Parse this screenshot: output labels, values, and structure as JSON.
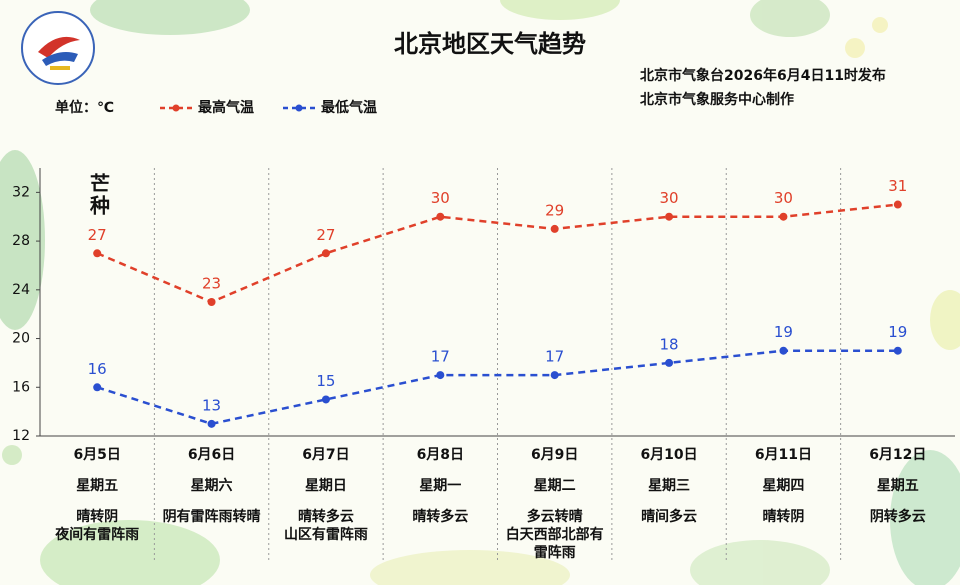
{
  "chart_data": {
    "type": "line",
    "title": "北京地区天气趋势",
    "publisher": [
      "北京市气象台2026年6月4日11时发布",
      "北京市气象服务中心制作"
    ],
    "unit_label": "单位：℃",
    "annotation": "芒种",
    "categories": [
      "6月5日",
      "6月6日",
      "6月7日",
      "6月8日",
      "6月9日",
      "6月10日",
      "6月11日",
      "6月12日"
    ],
    "weekdays": [
      "星期五",
      "星期六",
      "星期日",
      "星期一",
      "星期二",
      "星期三",
      "星期四",
      "星期五"
    ],
    "weather": [
      [
        "晴转阴",
        "夜间有雷阵雨"
      ],
      [
        "阴有雷阵雨转晴"
      ],
      [
        "晴转多云",
        "山区有雷阵雨"
      ],
      [
        "晴转多云"
      ],
      [
        "多云转晴",
        "白天西部北部有",
        "雷阵雨"
      ],
      [
        "晴间多云"
      ],
      [
        "晴转阴"
      ],
      [
        "阴转多云"
      ]
    ],
    "series": [
      {
        "name": "最高气温",
        "color": "#e0402a",
        "values": [
          27,
          23,
          27,
          30,
          29,
          30,
          30,
          31
        ]
      },
      {
        "name": "最低气温",
        "color": "#2a4fd0",
        "values": [
          16,
          13,
          15,
          17,
          17,
          18,
          19,
          19
        ]
      }
    ],
    "ylim": [
      12,
      34
    ],
    "yticks": [
      12,
      16,
      20,
      24,
      28,
      32
    ],
    "grid": false
  }
}
